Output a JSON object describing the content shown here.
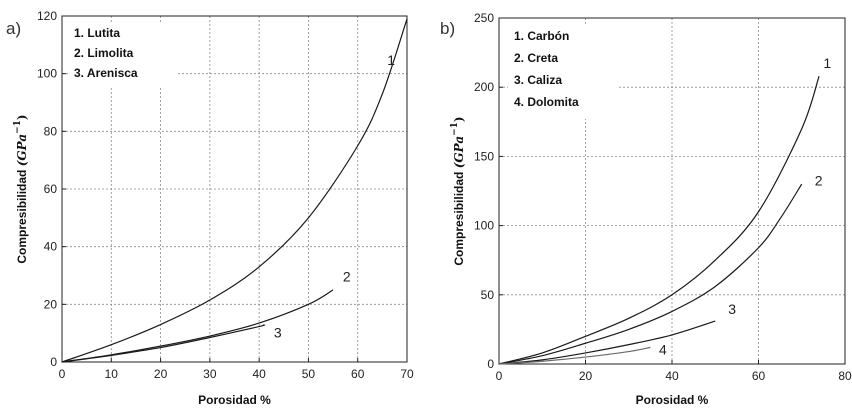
{
  "chart_data": [
    {
      "type": "line",
      "panel_label": "a)",
      "title": "",
      "xlabel": "Porosidad %",
      "ylabel_text": "Compresibilidad ",
      "ylabel_unit_main": "(GPa",
      "ylabel_unit_sup": "−1",
      "ylabel_unit_close": ")",
      "xlim": [
        0,
        70
      ],
      "ylim": [
        0,
        120
      ],
      "xticks": [
        0,
        10,
        20,
        30,
        40,
        50,
        60,
        70
      ],
      "yticks": [
        0,
        20,
        40,
        60,
        80,
        100,
        120
      ],
      "grid": true,
      "legend_position": "top-left",
      "legend": [
        "1.   Lutita",
        "2.   Limolita",
        "3.   Arenisca"
      ],
      "series": [
        {
          "label": "1",
          "x": [
            0,
            10,
            20,
            30,
            40,
            50,
            60,
            65,
            70
          ],
          "y": [
            0,
            6,
            13,
            21.5,
            33,
            50,
            75,
            93,
            119
          ],
          "label_at": [
            66,
            103
          ]
        },
        {
          "label": "2",
          "x": [
            0,
            10,
            20,
            30,
            40,
            50,
            55
          ],
          "y": [
            0,
            2.5,
            5.5,
            9,
            13.5,
            20,
            25
          ],
          "label_at": [
            57,
            28
          ]
        },
        {
          "label": "3",
          "x": [
            0,
            10,
            20,
            30,
            40,
            41
          ],
          "y": [
            0,
            2.3,
            5,
            8.5,
            12.3,
            13
          ],
          "label_at": [
            43,
            8.5
          ]
        }
      ]
    },
    {
      "type": "line",
      "panel_label": "b)",
      "title": "",
      "xlabel": "Porosidad %",
      "ylabel_text": "Compresibilidad ",
      "ylabel_unit_main": "(GPa",
      "ylabel_unit_sup": "−1",
      "ylabel_unit_close": ")",
      "xlim": [
        0,
        80
      ],
      "ylim": [
        0,
        250
      ],
      "xticks": [
        0,
        20,
        40,
        60,
        80
      ],
      "yticks": [
        0,
        50,
        100,
        150,
        200,
        250
      ],
      "grid": true,
      "legend_position": "top-left",
      "legend": [
        "1.   Carbón",
        "2.   Creta",
        "3.   Caliza",
        "4.   Dolomita"
      ],
      "series": [
        {
          "label": "1",
          "x": [
            0,
            10,
            20,
            30,
            40,
            50,
            60,
            70,
            74
          ],
          "y": [
            0,
            8,
            20,
            33,
            50,
            75,
            110,
            170,
            208
          ],
          "label_at": [
            75,
            214
          ]
        },
        {
          "label": "2",
          "x": [
            0,
            10,
            20,
            30,
            40,
            50,
            60,
            65,
            70
          ],
          "y": [
            0,
            6,
            15,
            25,
            38,
            56,
            84,
            105,
            130
          ],
          "label_at": [
            73,
            129
          ]
        },
        {
          "label": "3",
          "x": [
            0,
            10,
            20,
            30,
            40,
            50
          ],
          "y": [
            0,
            3,
            8,
            14,
            21,
            31
          ],
          "label_at": [
            53,
            36
          ]
        },
        {
          "label": "4",
          "x": [
            0,
            10,
            20,
            30,
            35
          ],
          "y": [
            0,
            2,
            5,
            9,
            12
          ],
          "label_at": [
            37,
            7
          ]
        }
      ]
    }
  ]
}
